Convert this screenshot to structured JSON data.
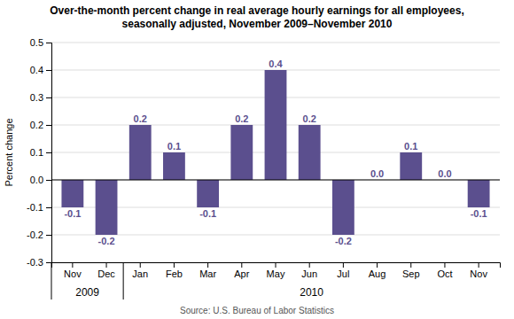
{
  "chart_data": {
    "type": "bar",
    "title": "Over-the-month percent change in real average hourly earnings for all employees,\nseasonally adjusted, November 2009–November 2010",
    "ylabel": "Percent change",
    "source": "Source: U.S. Bureau of Labor Statistics",
    "categories": [
      "Nov",
      "Dec",
      "Jan",
      "Feb",
      "Mar",
      "Apr",
      "May",
      "Jun",
      "Jul",
      "Aug",
      "Sep",
      "Oct",
      "Nov"
    ],
    "values": [
      -0.1,
      -0.2,
      0.2,
      0.1,
      -0.1,
      0.2,
      0.4,
      0.2,
      -0.2,
      0.0,
      0.1,
      0.0,
      -0.1
    ],
    "value_labels": [
      "-0.1",
      "-0.2",
      "0.2",
      "0.1",
      "-0.1",
      "0.2",
      "0.4",
      "0.2",
      "-0.2",
      "0.0",
      "0.1",
      "0.0",
      "-0.1"
    ],
    "data_labels": true,
    "color": "#5b4f8e",
    "ylim": [
      -0.3,
      0.5
    ],
    "yticks": [
      -0.3,
      -0.2,
      -0.1,
      {
        "value": 0,
        "label": "0.0"
      },
      0.1,
      0.2,
      0.3,
      0.4,
      0.5
    ],
    "grid": true,
    "annotations": [
      {
        "text": "2009",
        "span": 2
      },
      {
        "text": "2010",
        "span": 11
      }
    ]
  }
}
